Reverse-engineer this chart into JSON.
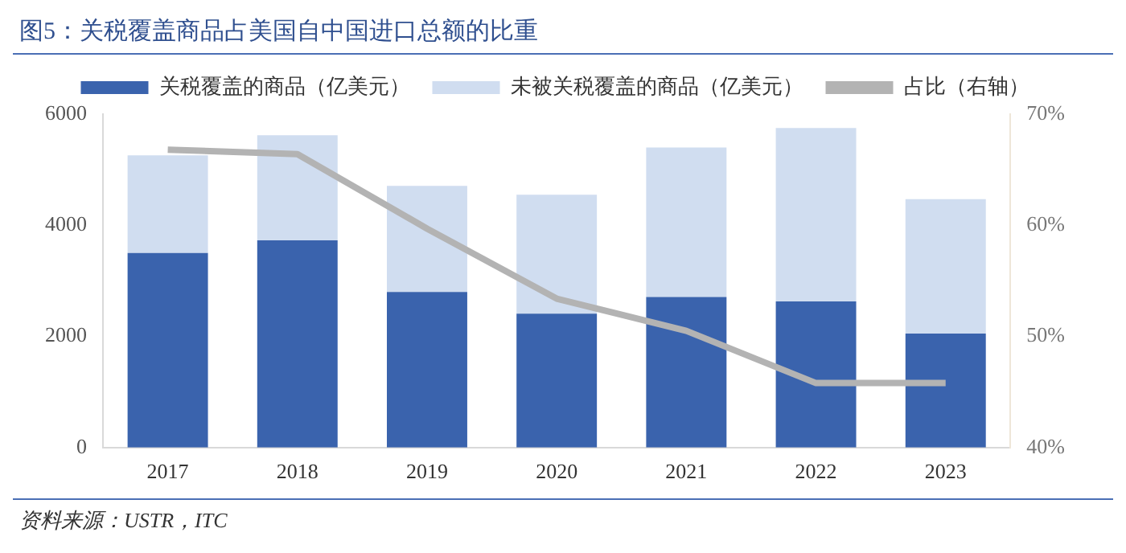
{
  "chart_data": {
    "type": "bar",
    "title": "图5：关税覆盖商品占美国自中国进口总额的比重",
    "categories": [
      "2017",
      "2018",
      "2019",
      "2020",
      "2021",
      "2022",
      "2023"
    ],
    "stacked": true,
    "series": [
      {
        "name": "关税覆盖的商品（亿美元）",
        "color": "#3a63ad",
        "values": [
          3500,
          3730,
          2800,
          2410,
          2710,
          2630,
          2050
        ]
      },
      {
        "name": "未被关税覆盖的商品（亿美元）",
        "color": "#d0ddf0",
        "values": [
          1760,
          1890,
          1910,
          2140,
          2690,
          3120,
          2420
        ]
      },
      {
        "name": "占比（右轴）",
        "type": "line",
        "axis": "y2",
        "color": "#b3b3b3",
        "values": [
          66.8,
          66.4,
          59.7,
          53.4,
          50.5,
          45.8,
          45.8
        ]
      }
    ],
    "ylim": [
      0,
      6000
    ],
    "yticks": [
      0,
      2000,
      4000,
      6000
    ],
    "y2lim": [
      40,
      70
    ],
    "y2ticks": [
      {
        "value": 40,
        "label": "40%"
      },
      {
        "value": 50,
        "label": "50%"
      },
      {
        "value": 60,
        "label": "60%"
      },
      {
        "value": 70,
        "label": "70%"
      }
    ],
    "grid": false,
    "legend": "top",
    "marker": "none",
    "annotations": [
      "资料来源：USTR，ITC"
    ]
  }
}
